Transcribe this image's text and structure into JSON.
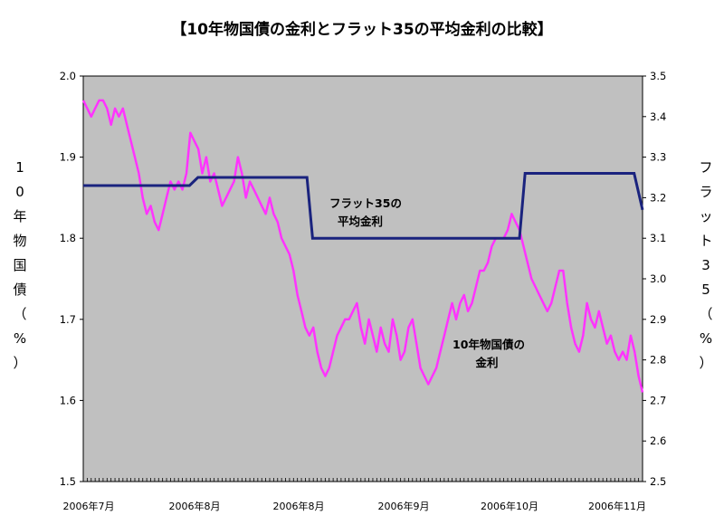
{
  "chart_data": {
    "type": "line",
    "title": "【10年物国債の金利とフラット35の平均金利の比較】",
    "y_left": {
      "label": [
        "1",
        "0",
        "年",
        "物",
        "国",
        "債",
        "（",
        "%",
        "）"
      ],
      "ticks": [
        "2.0",
        "1.9",
        "1.8",
        "1.7",
        "1.6",
        "1.5"
      ],
      "ylim": [
        1.5,
        2.0
      ]
    },
    "y_right": {
      "label": [
        "フ",
        "ラ",
        "ッ",
        "ト",
        "3",
        "5",
        "（",
        "%",
        "）"
      ],
      "ticks": [
        "3.5",
        "3.4",
        "3.3",
        "3.2",
        "3.1",
        "3.0",
        "2.9",
        "2.8",
        "2.7",
        "2.6",
        "2.5"
      ],
      "ylim": [
        2.5,
        3.5
      ]
    },
    "x_ticks": [
      "2006年7月",
      "2006年8月",
      "2006年8月",
      "2006年9月",
      "2006年10月",
      "2006年11月"
    ],
    "grid": false,
    "legend": "none",
    "series": [
      {
        "name": "10年物国債の金利",
        "annotation": [
          "10年物国債の",
          "金利"
        ],
        "axis": "left",
        "color": "#ff33ff",
        "values": [
          1.97,
          1.96,
          1.95,
          1.96,
          1.97,
          1.97,
          1.96,
          1.94,
          1.96,
          1.95,
          1.96,
          1.94,
          1.92,
          1.9,
          1.88,
          1.85,
          1.83,
          1.84,
          1.82,
          1.81,
          1.83,
          1.85,
          1.87,
          1.86,
          1.87,
          1.86,
          1.88,
          1.93,
          1.92,
          1.91,
          1.88,
          1.9,
          1.87,
          1.88,
          1.86,
          1.84,
          1.85,
          1.86,
          1.87,
          1.9,
          1.88,
          1.85,
          1.87,
          1.86,
          1.85,
          1.84,
          1.83,
          1.85,
          1.83,
          1.82,
          1.8,
          1.79,
          1.78,
          1.76,
          1.73,
          1.71,
          1.69,
          1.68,
          1.69,
          1.66,
          1.64,
          1.63,
          1.64,
          1.66,
          1.68,
          1.69,
          1.7,
          1.7,
          1.71,
          1.72,
          1.69,
          1.67,
          1.7,
          1.68,
          1.66,
          1.69,
          1.67,
          1.66,
          1.7,
          1.68,
          1.65,
          1.66,
          1.69,
          1.7,
          1.67,
          1.64,
          1.63,
          1.62,
          1.63,
          1.64,
          1.66,
          1.68,
          1.7,
          1.72,
          1.7,
          1.72,
          1.73,
          1.71,
          1.72,
          1.74,
          1.76,
          1.76,
          1.77,
          1.79,
          1.8,
          1.8,
          1.8,
          1.81,
          1.83,
          1.82,
          1.81,
          1.79,
          1.77,
          1.75,
          1.74,
          1.73,
          1.72,
          1.71,
          1.72,
          1.74,
          1.76,
          1.76,
          1.72,
          1.69,
          1.67,
          1.66,
          1.68,
          1.72,
          1.7,
          1.69,
          1.71,
          1.69,
          1.67,
          1.68,
          1.66,
          1.65,
          1.66,
          1.65,
          1.68,
          1.66,
          1.63,
          1.61
        ]
      },
      {
        "name": "フラット35の平均金利",
        "annotation": [
          "フラット35の",
          "平均金利"
        ],
        "axis": "right",
        "color": "#1a237e",
        "steps": [
          {
            "from": 0.0,
            "to": 0.19,
            "value": 3.23
          },
          {
            "from": 0.19,
            "to": 0.205,
            "value": 3.23,
            "to_value": 3.25
          },
          {
            "from": 0.205,
            "to": 0.4,
            "value": 3.25
          },
          {
            "from": 0.41,
            "to": 0.78,
            "value": 3.1
          },
          {
            "from": 0.79,
            "to": 0.985,
            "value": 3.26
          },
          {
            "from": 1.0,
            "to": 1.0,
            "value": 3.17
          }
        ]
      }
    ]
  }
}
